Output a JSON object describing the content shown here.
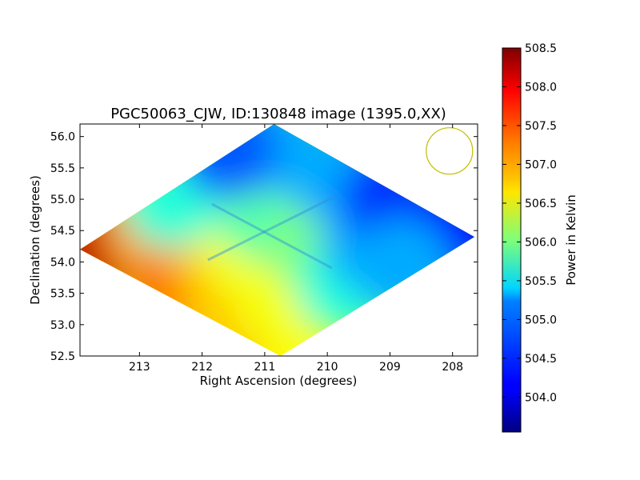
{
  "chart_data": {
    "type": "heatmap",
    "title": "PGC50063_CJW, ID:130848 image (1395.0,XX)",
    "xlabel": "Right Ascension (degrees)",
    "ylabel": "Declination (degrees)",
    "xlim": [
      213.95,
      207.6
    ],
    "ylim": [
      52.5,
      56.2
    ],
    "x_ticks": [
      213,
      212,
      211,
      210,
      209,
      208
    ],
    "y_ticks": [
      52.5,
      53.0,
      53.5,
      54.0,
      54.5,
      55.0,
      55.5,
      56.0
    ],
    "x_tick_labels": [
      "213",
      "212",
      "211",
      "210",
      "209",
      "208"
    ],
    "y_tick_labels": [
      "52.5",
      "53.0",
      "53.5",
      "54.0",
      "54.5",
      "55.0",
      "55.5",
      "56.0"
    ],
    "colorbar": {
      "label": "Power in Kelvin",
      "range": [
        503.55,
        508.5
      ],
      "ticks": [
        504.0,
        504.5,
        505.0,
        505.5,
        506.0,
        506.5,
        507.0,
        507.5,
        508.0,
        508.5
      ],
      "tick_labels": [
        "504.0",
        "504.5",
        "505.0",
        "505.5",
        "506.0",
        "506.5",
        "507.0",
        "507.5",
        "508.0",
        "508.5"
      ],
      "colormap": "jet"
    },
    "map_footprint_corners": [
      {
        "ra": 213.95,
        "dec": 54.2
      },
      {
        "ra": 210.85,
        "dec": 56.2
      },
      {
        "ra": 207.65,
        "dec": 54.4
      },
      {
        "ra": 210.75,
        "dec": 52.5
      }
    ],
    "sample_field": [
      {
        "ra": 213.7,
        "dec": 54.25,
        "value": 508.2
      },
      {
        "ra": 212.4,
        "dec": 53.9,
        "value": 508.0
      },
      {
        "ra": 212.8,
        "dec": 54.5,
        "value": 507.1
      },
      {
        "ra": 212.1,
        "dec": 53.6,
        "value": 507.5
      },
      {
        "ra": 211.8,
        "dec": 53.9,
        "value": 507.0
      },
      {
        "ra": 211.5,
        "dec": 53.0,
        "value": 506.9
      },
      {
        "ra": 211.3,
        "dec": 54.2,
        "value": 506.6
      },
      {
        "ra": 210.7,
        "dec": 53.4,
        "value": 506.6
      },
      {
        "ra": 212.5,
        "dec": 55.0,
        "value": 505.6
      },
      {
        "ra": 211.2,
        "dec": 55.3,
        "value": 505.4
      },
      {
        "ra": 211.0,
        "dec": 54.8,
        "value": 505.8
      },
      {
        "ra": 210.8,
        "dec": 55.9,
        "value": 505.0
      },
      {
        "ra": 211.6,
        "dec": 55.8,
        "value": 504.6
      },
      {
        "ra": 210.2,
        "dec": 54.3,
        "value": 506.0
      },
      {
        "ra": 209.7,
        "dec": 53.6,
        "value": 505.6
      },
      {
        "ra": 209.9,
        "dec": 55.4,
        "value": 505.0
      },
      {
        "ra": 209.3,
        "dec": 54.3,
        "value": 505.0
      },
      {
        "ra": 209.0,
        "dec": 55.0,
        "value": 504.4
      },
      {
        "ra": 208.2,
        "dec": 54.3,
        "value": 504.5
      },
      {
        "ra": 207.9,
        "dec": 54.6,
        "value": 504.2
      },
      {
        "ra": 208.8,
        "dec": 53.9,
        "value": 505.0
      }
    ],
    "beam_circle": {
      "ra": 208.05,
      "dec": 55.77,
      "radius_deg": 0.37,
      "color": "#bfbf00"
    },
    "grid": false,
    "legend": "none"
  }
}
